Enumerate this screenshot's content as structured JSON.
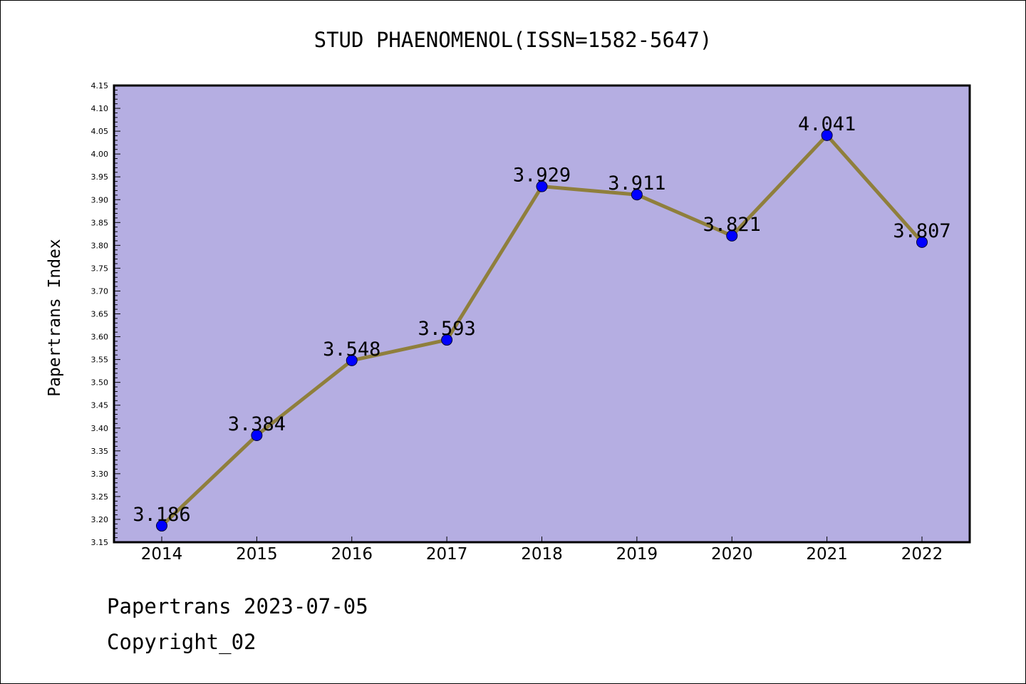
{
  "chart_data": {
    "type": "line",
    "title": "STUD PHAENOMENOL(ISSN=1582-5647)",
    "xlabel": "",
    "ylabel": "Papertrans Index",
    "categories": [
      "2014",
      "2015",
      "2016",
      "2017",
      "2018",
      "2019",
      "2020",
      "2021",
      "2022"
    ],
    "series": [
      {
        "name": "Papertrans Index",
        "values": [
          3.186,
          3.384,
          3.548,
          3.593,
          3.929,
          3.911,
          3.821,
          4.041,
          3.807
        ],
        "labels": [
          "3.186",
          "3.384",
          "3.548",
          "3.593",
          "3.929",
          "3.911",
          "3.821",
          "4.041",
          "3.807"
        ]
      }
    ],
    "ylim": [
      3.15,
      4.15
    ],
    "yticks": [
      "3.15",
      "3.20",
      "3.25",
      "3.30",
      "3.35",
      "3.40",
      "3.45",
      "3.50",
      "3.55",
      "3.60",
      "3.65",
      "3.70",
      "3.75",
      "3.80",
      "3.85",
      "3.90",
      "3.95",
      "4.00",
      "4.05",
      "4.10",
      "4.15"
    ],
    "grid": false,
    "colors": {
      "plot_background": "#b5aee2",
      "line": "#8f7f3c",
      "marker": "#0000ff"
    }
  },
  "footer": {
    "line1": "Papertrans 2023-07-05",
    "line2": "Copyright_02"
  }
}
